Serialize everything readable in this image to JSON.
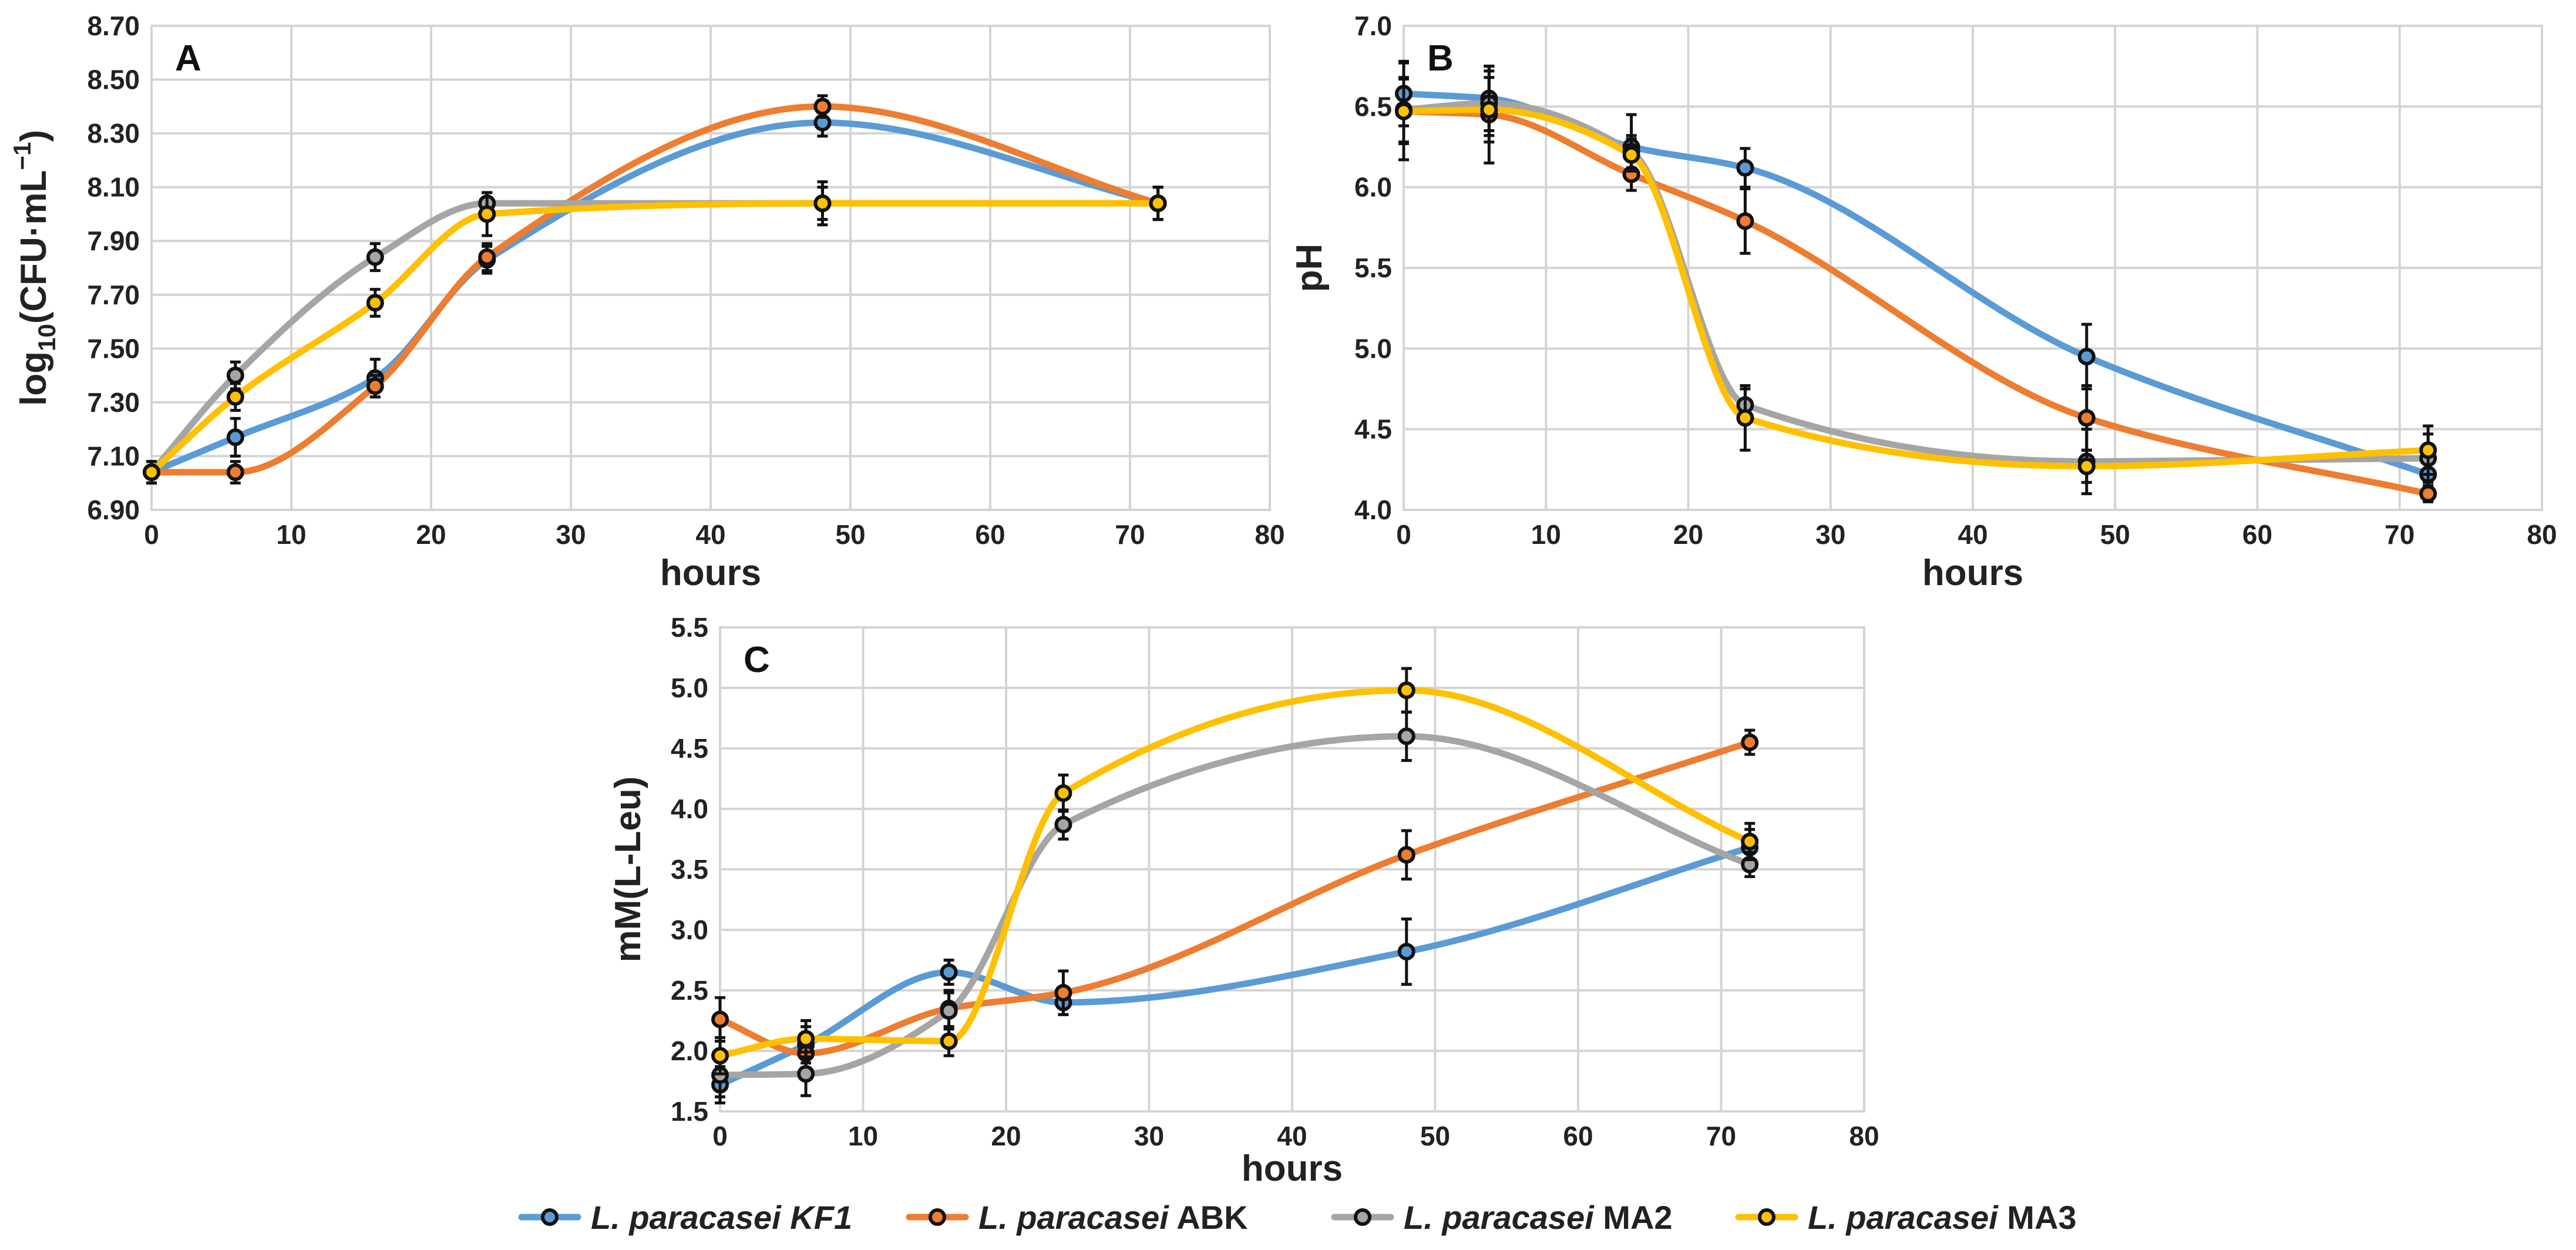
{
  "colors": {
    "KF1": "#5b9bd5",
    "ABK": "#ed7d31",
    "MA2": "#a5a5a5",
    "MA3": "#ffc000"
  },
  "legend": {
    "placement": "bottom-center",
    "items": [
      {
        "key": "KF1",
        "italic": "L. paracasei KF1",
        "plain": ""
      },
      {
        "key": "ABK",
        "italic": "L. paracasei",
        "plain": " ABK"
      },
      {
        "key": "MA2",
        "italic": "L. paracasei",
        "plain": " MA2"
      },
      {
        "key": "MA3",
        "italic": "L. paracasei",
        "plain": " MA3"
      }
    ]
  },
  "chart_data": [
    {
      "type": "line",
      "panel_label": "A",
      "xlabel": "hours",
      "ylabel": "log10(CFU·mL−1)",
      "ylabel_parts": {
        "pre": "log",
        "sub": "10",
        "mid": "(CFU·mL",
        "sup": "−1",
        "post": ")"
      },
      "xlim": [
        0,
        80
      ],
      "ylim": [
        6.9,
        8.7
      ],
      "xticks": [
        "0",
        "10",
        "20",
        "30",
        "40",
        "50",
        "60",
        "70",
        "80"
      ],
      "yticks": [
        "6.90",
        "7.10",
        "7.30",
        "7.50",
        "7.70",
        "7.90",
        "8.10",
        "8.30",
        "8.50",
        "8.70"
      ],
      "grid": true,
      "x": [
        0,
        6,
        16,
        24,
        48,
        72
      ],
      "series": [
        {
          "key": "KF1",
          "values": [
            7.04,
            7.17,
            7.39,
            7.83,
            8.34,
            8.04
          ],
          "err": [
            0.04,
            0.07,
            0.07,
            0.05,
            0.05,
            0.06
          ]
        },
        {
          "key": "ABK",
          "values": [
            7.04,
            7.04,
            7.36,
            7.84,
            8.4,
            8.04
          ],
          "err": [
            0.04,
            0.04,
            0.04,
            0.05,
            0.04,
            0.06
          ]
        },
        {
          "key": "MA2",
          "values": [
            7.04,
            7.4,
            7.84,
            8.04,
            8.04,
            8.04
          ],
          "err": [
            0.04,
            0.05,
            0.05,
            0.04,
            0.08,
            0.06
          ]
        },
        {
          "key": "MA3",
          "values": [
            7.04,
            7.32,
            7.67,
            8.0,
            8.04,
            8.04
          ],
          "err": [
            0.04,
            0.05,
            0.05,
            0.08,
            0.06,
            0.06
          ]
        }
      ]
    },
    {
      "type": "line",
      "panel_label": "B",
      "xlabel": "hours",
      "ylabel": "pH",
      "xlim": [
        0,
        80
      ],
      "ylim": [
        4.0,
        7.0
      ],
      "xticks": [
        "0",
        "10",
        "20",
        "30",
        "40",
        "50",
        "60",
        "70",
        "80"
      ],
      "yticks": [
        "4.0",
        "4.5",
        "5.0",
        "5.5",
        "6.0",
        "6.5",
        "7.0"
      ],
      "grid": true,
      "x": [
        0,
        6,
        16,
        24,
        48,
        72
      ],
      "series": [
        {
          "key": "KF1",
          "values": [
            6.58,
            6.55,
            6.25,
            6.12,
            4.95,
            4.22
          ],
          "err": [
            0.2,
            0.2,
            0.2,
            0.12,
            0.2,
            0.1
          ]
        },
        {
          "key": "ABK",
          "values": [
            6.47,
            6.45,
            6.08,
            5.79,
            4.57,
            4.1
          ],
          "err": [
            0.3,
            0.3,
            0.1,
            0.2,
            0.2,
            0.05
          ]
        },
        {
          "key": "MA2",
          "values": [
            6.48,
            6.52,
            6.22,
            4.65,
            4.3,
            4.32
          ],
          "err": [
            0.2,
            0.2,
            0.1,
            0.1,
            0.2,
            0.15
          ]
        },
        {
          "key": "MA3",
          "values": [
            6.47,
            6.48,
            6.2,
            4.57,
            4.27,
            4.37
          ],
          "err": [
            0.2,
            0.2,
            0.1,
            0.2,
            0.1,
            0.15
          ]
        }
      ]
    },
    {
      "type": "line",
      "panel_label": "C",
      "xlabel": "hours",
      "ylabel": "mM(L-Leu)",
      "xlim": [
        0,
        80
      ],
      "ylim": [
        1.5,
        5.5
      ],
      "xticks": [
        "0",
        "10",
        "20",
        "30",
        "40",
        "50",
        "60",
        "70",
        "80"
      ],
      "yticks": [
        "1.5",
        "2.0",
        "2.5",
        "3.0",
        "3.5",
        "4.0",
        "4.5",
        "5.0",
        "5.5"
      ],
      "grid": true,
      "x": [
        0,
        6,
        16,
        24,
        48,
        72
      ],
      "series": [
        {
          "key": "KF1",
          "values": [
            1.72,
            2.05,
            2.65,
            2.4,
            2.82,
            3.68
          ],
          "err": [
            0.15,
            0.15,
            0.1,
            0.1,
            0.27,
            0.15
          ]
        },
        {
          "key": "ABK",
          "values": [
            2.26,
            1.98,
            2.35,
            2.48,
            3.62,
            4.55
          ],
          "err": [
            0.18,
            0.12,
            0.15,
            0.18,
            0.2,
            0.1
          ]
        },
        {
          "key": "MA2",
          "values": [
            1.8,
            1.81,
            2.33,
            3.87,
            4.6,
            3.54
          ],
          "err": [
            0.18,
            0.18,
            0.15,
            0.12,
            0.2,
            0.1
          ]
        },
        {
          "key": "MA3",
          "values": [
            1.96,
            2.1,
            2.08,
            4.13,
            4.98,
            3.73
          ],
          "err": [
            0.15,
            0.15,
            0.12,
            0.15,
            0.18,
            0.15
          ]
        }
      ]
    }
  ]
}
